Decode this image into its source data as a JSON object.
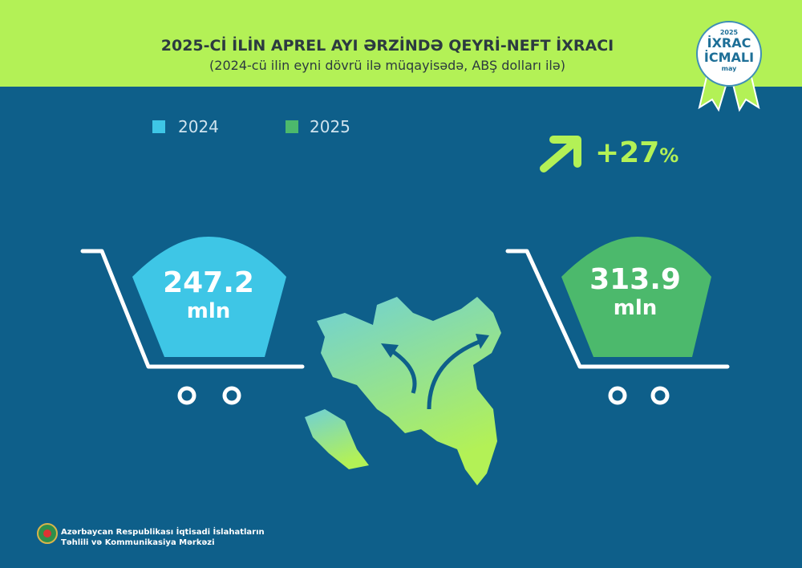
{
  "header": {
    "title": "2025-Cİ İLİN APREL AYI ƏRZİNDƏ QEYRİ-NEFT İXRACI",
    "subtitle": "(2024-cü ilin eyni dövrü ilə müqayisədə, ABŞ dolları ilə)"
  },
  "badge": {
    "year": "2025",
    "line1": "İXRAC",
    "line2": "İCMALI",
    "month": "may"
  },
  "legend": [
    {
      "label": "2024",
      "color": "#3ec6e6"
    },
    {
      "label": "2025",
      "color": "#4cb96c"
    }
  ],
  "growth": {
    "value": "+27",
    "unit": "%",
    "icon": "arrow-up-right-icon"
  },
  "values": [
    {
      "number": "247.2",
      "unit": "mln",
      "color": "#3ec6e6"
    },
    {
      "number": "313.9",
      "unit": "mln",
      "color": "#4cb96c"
    }
  ],
  "footer": {
    "line1": "Azərbaycan Respublikası İqtisadi İslahatların",
    "line2": "Təhlili və Kommunikasiya Mərkəzi"
  },
  "colors": {
    "header_bg": "#b3f156",
    "body_bg": "#0e5f8a"
  }
}
